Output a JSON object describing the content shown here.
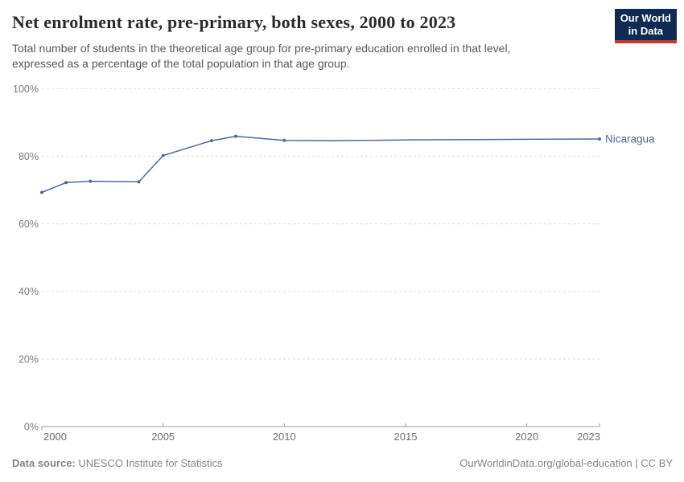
{
  "logo": {
    "line1": "Our World",
    "line2": "in Data",
    "bg_color": "#102b50",
    "accent_color": "#c13a31"
  },
  "chart_data": {
    "type": "line",
    "title": "Net enrolment rate, pre-primary, both sexes, 2000 to 2023",
    "subtitle_lines": [
      "Total number of students in the theoretical age group for pre-primary education enrolled in that level,",
      "expressed as a percentage of the total population in that age group.",
      ""
    ],
    "grid": "horizontal dashed",
    "legend_position": "end-of-line label",
    "xaxis": {
      "min": 2000,
      "max": 2023,
      "ticks": [
        2000,
        2005,
        2010,
        2015,
        2020,
        2023
      ]
    },
    "yaxis": {
      "min": 0,
      "max": 100,
      "ticks": [
        0,
        20,
        40,
        60,
        80,
        100
      ],
      "unit": "%"
    },
    "series": [
      {
        "name": "Nicaragua",
        "color": "#4c6a9d",
        "points": [
          [
            2000,
            69.3
          ],
          [
            2001,
            72.2
          ],
          [
            2002,
            72.6
          ],
          [
            2004,
            72.4
          ],
          [
            2005,
            80.2
          ],
          [
            2007,
            84.6
          ],
          [
            2008,
            85.9
          ],
          [
            2010,
            84.7
          ],
          [
            2012,
            84.6
          ],
          [
            2015,
            84.8
          ],
          [
            2018,
            84.9
          ],
          [
            2020,
            85.0
          ],
          [
            2023,
            85.1
          ]
        ],
        "marker_years": [
          2000,
          2001,
          2002,
          2004,
          2005,
          2007,
          2008,
          2010,
          2023
        ]
      }
    ]
  },
  "footer": {
    "datasource_label": "Data source:",
    "datasource_value": " UNESCO Institute for Statistics",
    "credit": "OurWorldinData.org/global-education | CC BY"
  }
}
